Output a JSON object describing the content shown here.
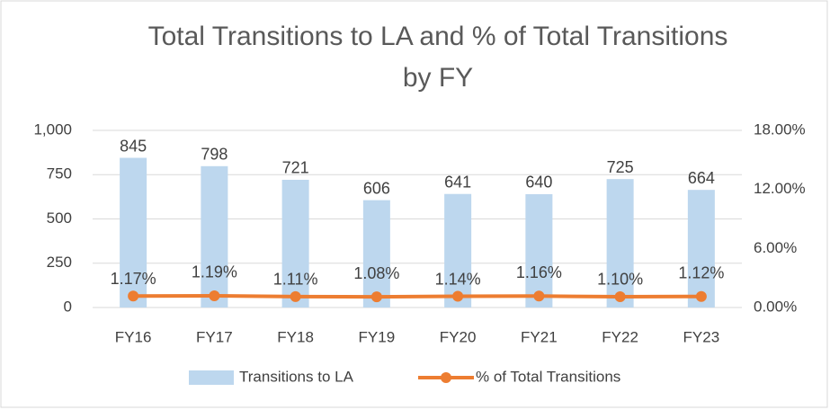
{
  "chart_data": {
    "type": "bar",
    "title": [
      "Total Transitions to LA and % of Total Transitions",
      "by FY"
    ],
    "categories": [
      "FY16",
      "FY17",
      "FY18",
      "FY19",
      "FY20",
      "FY21",
      "FY22",
      "FY23"
    ],
    "series": [
      {
        "name": "Transitions to LA",
        "color": "#bdd7ee",
        "values": [
          845,
          798,
          721,
          606,
          641,
          640,
          725,
          664
        ]
      },
      {
        "name": "% of Total Transitions",
        "color": "#ed7d31",
        "type": "line",
        "axis": "y2",
        "values": [
          1.17,
          1.19,
          1.11,
          1.08,
          1.14,
          1.16,
          1.1,
          1.12
        ],
        "value_labels": [
          "1.17%",
          "1.19%",
          "1.11%",
          "1.08%",
          "1.14%",
          "1.16%",
          "1.10%",
          "1.12%"
        ]
      }
    ],
    "ylim": [
      0,
      1000
    ],
    "yticks": [
      0,
      250,
      500,
      750,
      {
        "value": 1000,
        "label": "1,000"
      }
    ],
    "y2lim": [
      0,
      18
    ],
    "y2ticks": [
      {
        "value": 0,
        "label": "0.00%"
      },
      {
        "value": 6,
        "label": "6.00%"
      },
      {
        "value": 12,
        "label": "12.00%"
      },
      {
        "value": 18,
        "label": "18.00%"
      }
    ],
    "grid": true,
    "legend": "bottom"
  }
}
